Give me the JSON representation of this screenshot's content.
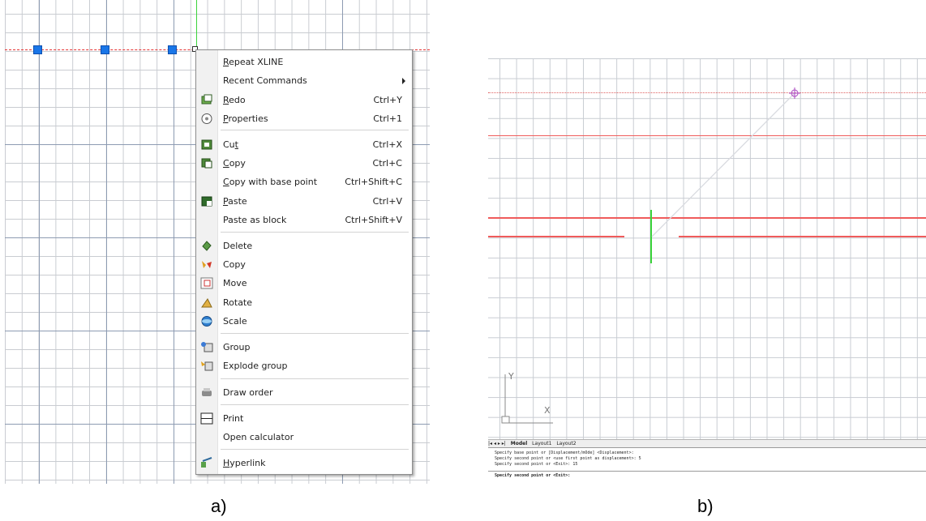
{
  "captions": {
    "a": "a)",
    "b": "b)"
  },
  "menu": {
    "items": [
      {
        "label": "Repeat XLINE",
        "ul": 0,
        "shortcut": "",
        "icon": ""
      },
      {
        "label": "Recent Commands",
        "ul": -1,
        "shortcut": "",
        "icon": "",
        "submenu": true
      },
      {
        "label": "Redo",
        "ul": 0,
        "shortcut": "Ctrl+Y",
        "icon": "redo-icon"
      },
      {
        "label": "Properties",
        "ul": 0,
        "shortcut": "Ctrl+1",
        "icon": "properties-icon"
      },
      {
        "label": "Cut",
        "ul": 2,
        "shortcut": "Ctrl+X",
        "icon": "cut-icon"
      },
      {
        "label": "Copy",
        "ul": 0,
        "shortcut": "Ctrl+C",
        "icon": "copy-icon"
      },
      {
        "label": "Copy with base point",
        "ul": 0,
        "shortcut": "Ctrl+Shift+C",
        "icon": ""
      },
      {
        "label": "Paste",
        "ul": 0,
        "shortcut": "Ctrl+V",
        "icon": "paste-icon"
      },
      {
        "label": "Paste as block",
        "ul": -1,
        "shortcut": "Ctrl+Shift+V",
        "icon": ""
      },
      {
        "label": "Delete",
        "ul": -1,
        "shortcut": "",
        "icon": "delete-icon"
      },
      {
        "label": "Copy",
        "ul": -1,
        "shortcut": "",
        "icon": "copy-objects-icon"
      },
      {
        "label": "Move",
        "ul": -1,
        "shortcut": "",
        "icon": "move-icon"
      },
      {
        "label": "Rotate",
        "ul": -1,
        "shortcut": "",
        "icon": "rotate-icon"
      },
      {
        "label": "Scale",
        "ul": -1,
        "shortcut": "",
        "icon": "scale-icon"
      },
      {
        "label": "Group",
        "ul": -1,
        "shortcut": "",
        "icon": "group-icon"
      },
      {
        "label": "Explode group",
        "ul": -1,
        "shortcut": "",
        "icon": "explode-group-icon"
      },
      {
        "label": "Draw order",
        "ul": -1,
        "shortcut": "",
        "icon": "draw-order-icon"
      },
      {
        "label": "Print",
        "ul": -1,
        "shortcut": "",
        "icon": "print-icon"
      },
      {
        "label": "Open calculator",
        "ul": -1,
        "shortcut": "",
        "icon": ""
      },
      {
        "label": "Hyperlink",
        "ul": 0,
        "shortcut": "",
        "icon": "hyperlink-icon"
      }
    ]
  },
  "panel_b": {
    "tabs": [
      "Model",
      "Layout1",
      "Layout2"
    ],
    "axis": {
      "y": "Y",
      "x": "X"
    },
    "command_lines": [
      "Specify base point or [Displacement/mOde] <Displacement>:",
      "Specify second point or <use first point as displacement>: 5",
      "Specify second point or <Exit>: 15"
    ],
    "prompt": "Specify second point or <Exit>:"
  }
}
